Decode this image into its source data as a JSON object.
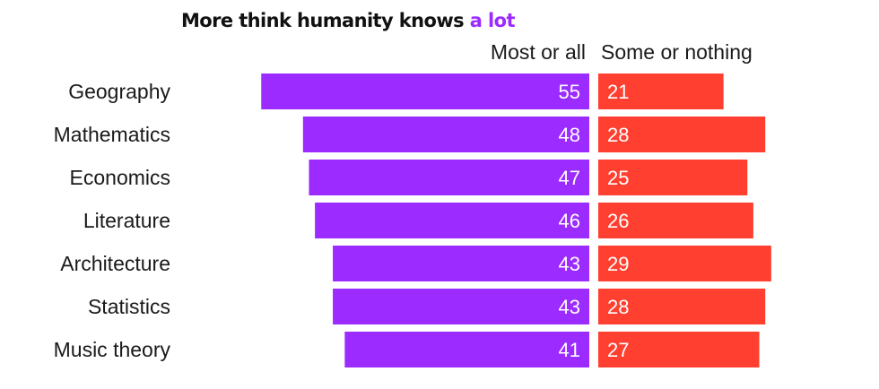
{
  "chart_data": {
    "type": "bar",
    "title": "More think humanity knows a lot",
    "title_parts": [
      "More think humanity knows ",
      "a lot"
    ],
    "categories": [
      "Geography",
      "Mathematics",
      "Economics",
      "Literature",
      "Architecture",
      "Statistics",
      "Music theory"
    ],
    "series": [
      {
        "name": "Most or all",
        "color": "#9B2BFF",
        "values": [
          55,
          48,
          47,
          46,
          43,
          43,
          41
        ]
      },
      {
        "name": "Some or nothing",
        "color": "#FF3F2F",
        "values": [
          21,
          28,
          25,
          26,
          29,
          28,
          27
        ]
      }
    ],
    "colors": {
      "title": "#111111",
      "title_highlight": "#9B2BFF"
    }
  }
}
